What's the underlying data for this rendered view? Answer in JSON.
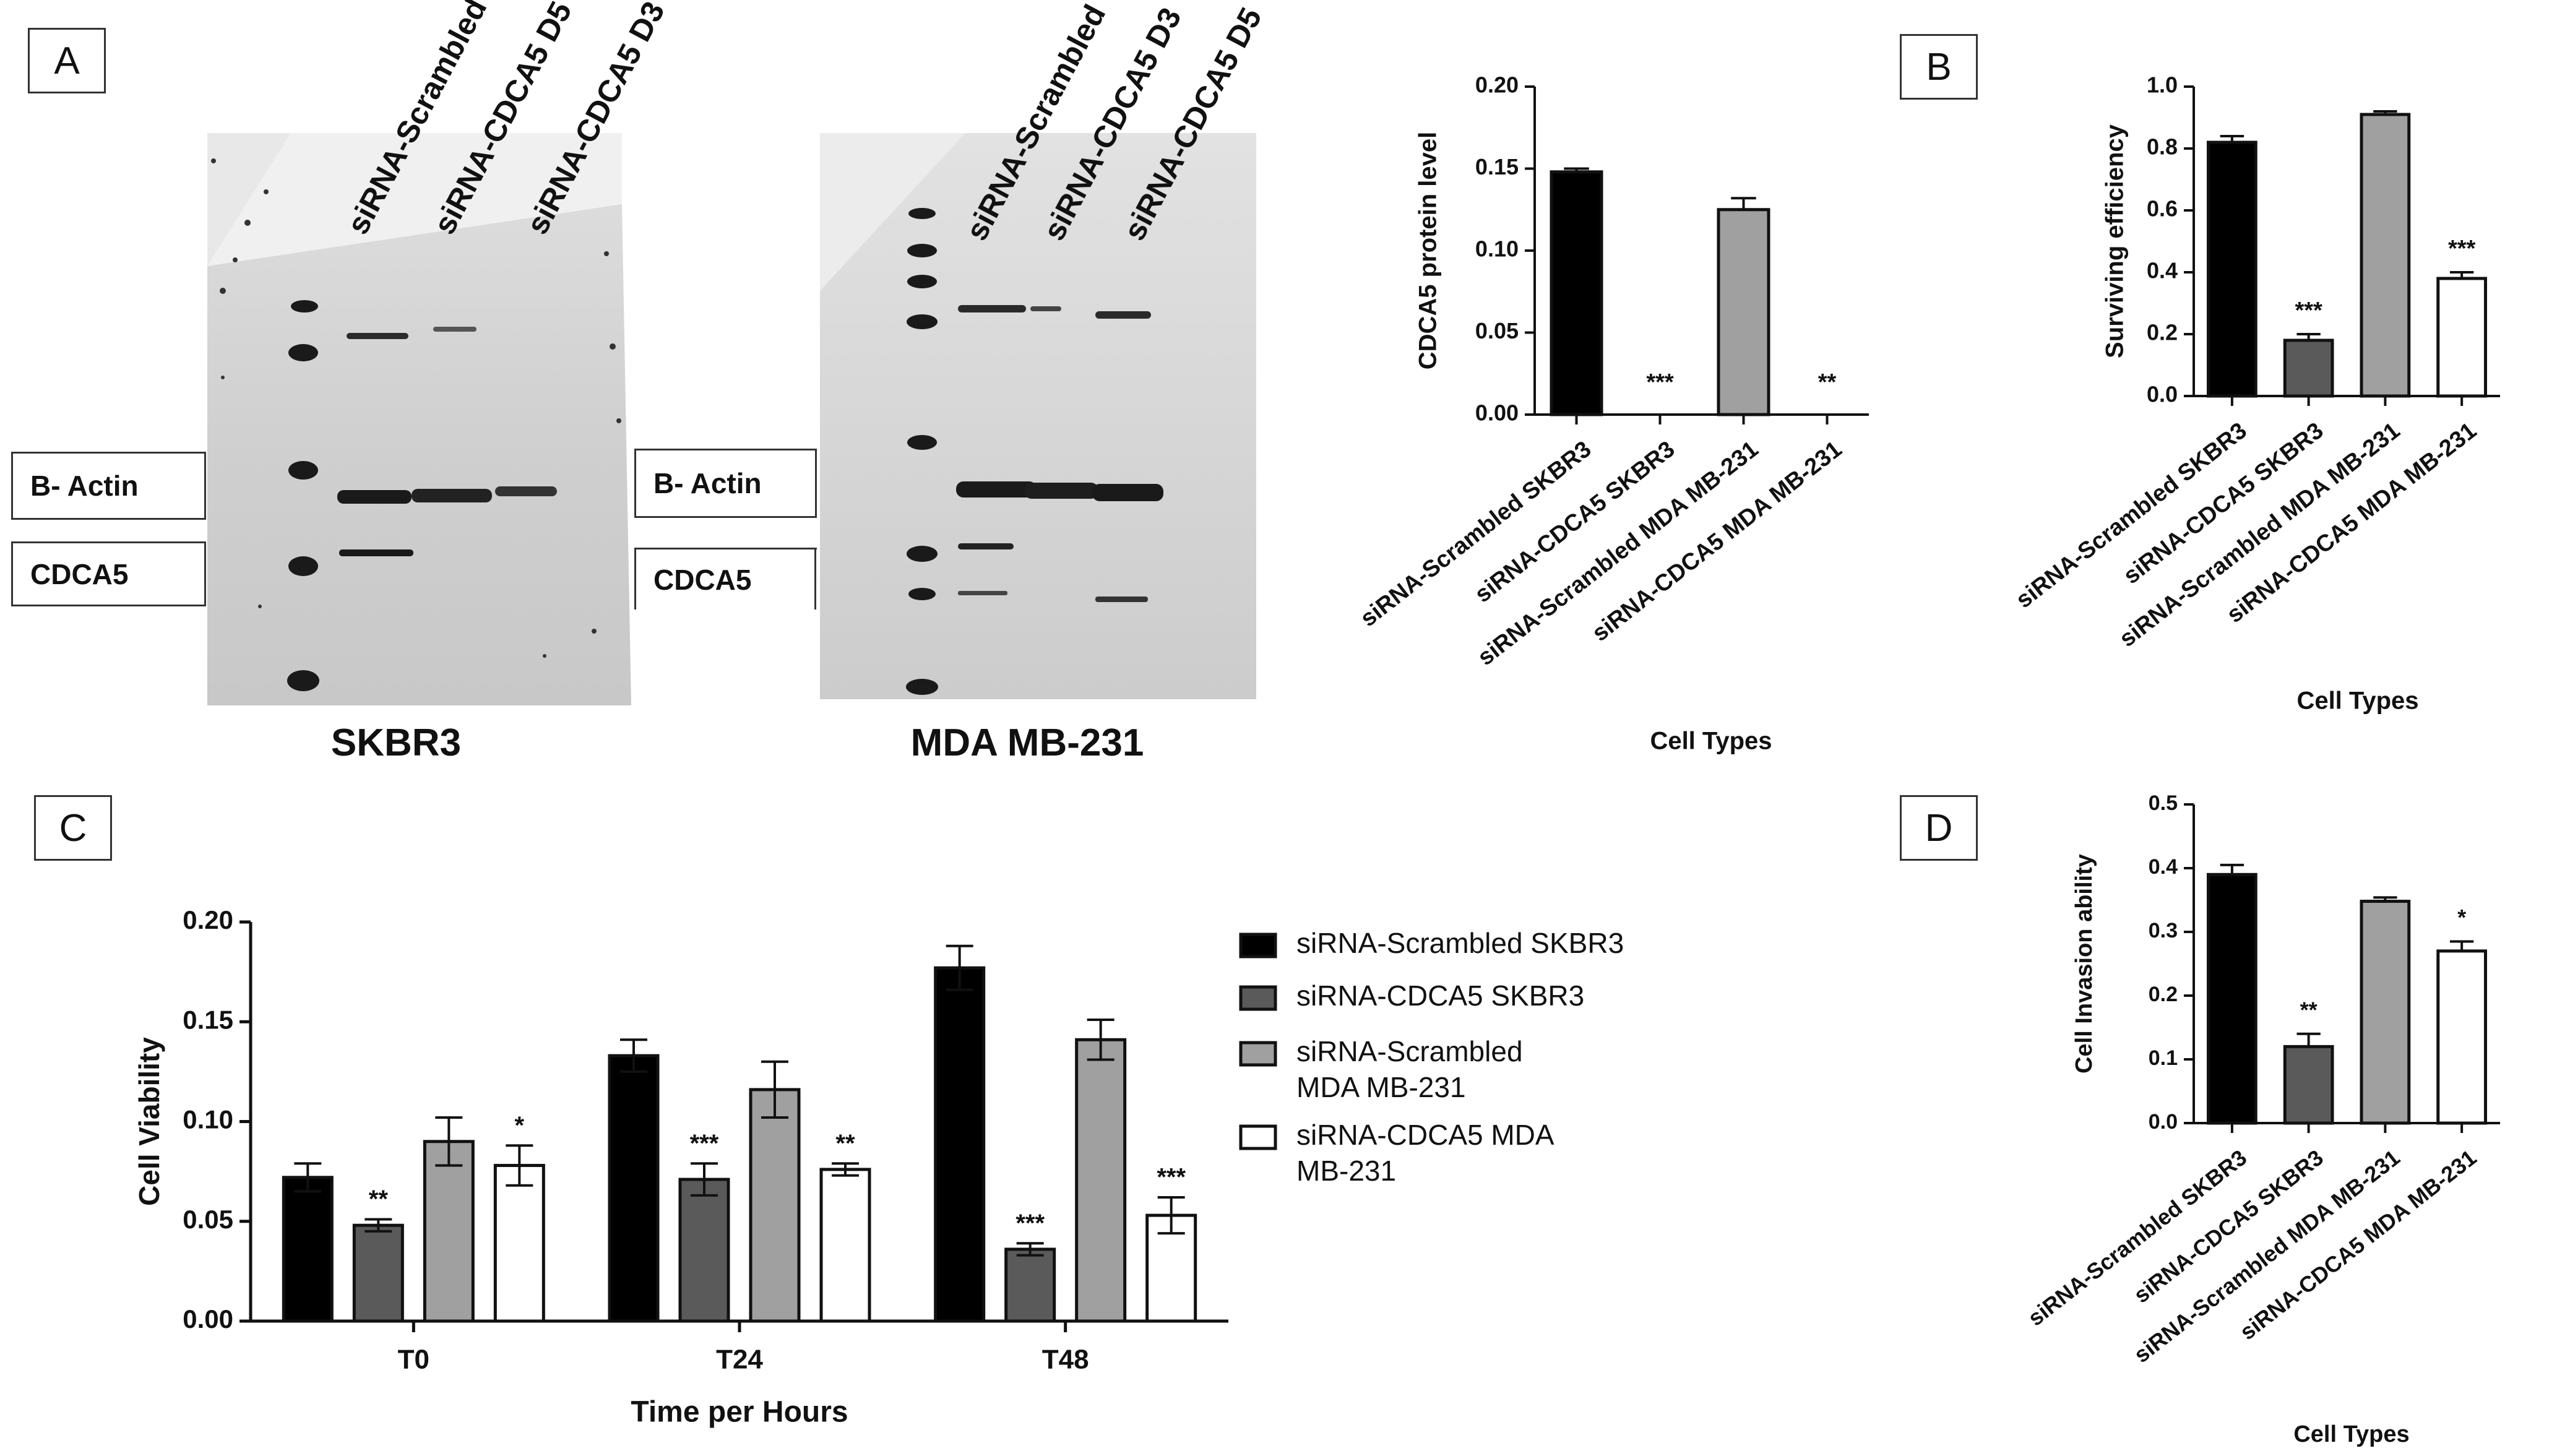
{
  "panels": {
    "a": "A",
    "b": "B",
    "c": "C",
    "d": "D"
  },
  "western_blot": {
    "band_labels": {
      "actin": "B- Actin",
      "cdca5": "CDCA5"
    },
    "blots": [
      {
        "title": "SKBR3",
        "lanes": [
          "siRNA-Scrambled",
          "siRNA-CDCA5 D5",
          "siRNA-CDCA5 D3"
        ]
      },
      {
        "title": "MDA MB-231",
        "lanes": [
          "siRNA-Scrambled",
          "siRNA-CDCA5 D3",
          "siRNA-CDCA5 D5"
        ]
      }
    ]
  },
  "colors": {
    "scrambled_skbr3": "#000000",
    "cdca5_skbr3": "#5a5a5a",
    "scrambled_mda": "#a0a0a0",
    "cdca5_mda": "#ffffff"
  },
  "chart_data": [
    {
      "id": "protein",
      "type": "bar",
      "categories": [
        "siRNA-Scrambled SKBR3",
        "siRNA-CDCA5 SKBR3",
        "siRNA-Scrambled MDA MB-231",
        "siRNA-CDCA5 MDA MB-231"
      ],
      "values": [
        0.148,
        0.0,
        0.125,
        0.0
      ],
      "errors": [
        0.002,
        0.0,
        0.007,
        0.0
      ],
      "significance": [
        "",
        "***",
        "",
        "**"
      ],
      "xlabel": "Cell Types",
      "ylabel": "CDCA5 protein level",
      "ylim": [
        0,
        0.2
      ],
      "yticks": [
        "0.00",
        "0.05",
        "0.10",
        "0.15",
        "0.20"
      ],
      "ytick_values": [
        0,
        0.05,
        0.1,
        0.15,
        0.2
      ]
    },
    {
      "id": "surviving",
      "type": "bar",
      "categories": [
        "siRNA-Scrambled SKBR3",
        "siRNA-CDCA5 SKBR3",
        "siRNA-Scrambled MDA MB-231",
        "siRNA-CDCA5 MDA MB-231"
      ],
      "values": [
        0.82,
        0.18,
        0.91,
        0.38
      ],
      "errors": [
        0.02,
        0.02,
        0.01,
        0.02
      ],
      "significance": [
        "",
        "***",
        "",
        "***"
      ],
      "xlabel": "Cell Types",
      "ylabel": "Surviving efficiency",
      "ylim": [
        0,
        1.0
      ],
      "yticks": [
        "0.0",
        "0.2",
        "0.4",
        "0.6",
        "0.8",
        "1.0"
      ],
      "ytick_values": [
        0,
        0.2,
        0.4,
        0.6,
        0.8,
        1.0
      ]
    },
    {
      "id": "viability",
      "type": "bar",
      "categories": [
        "T0",
        "T24",
        "T48"
      ],
      "series": [
        {
          "name": "siRNA-Scrambled SKBR3",
          "values": [
            0.072,
            0.133,
            0.177
          ],
          "errors": [
            0.007,
            0.008,
            0.011
          ],
          "significance": [
            "",
            "",
            ""
          ]
        },
        {
          "name": "siRNA-CDCA5 SKBR3",
          "values": [
            0.048,
            0.071,
            0.036
          ],
          "errors": [
            0.003,
            0.008,
            0.003
          ],
          "significance": [
            "**",
            "***",
            "***"
          ]
        },
        {
          "name": "siRNA-Scrambled MDA MB-231",
          "values": [
            0.09,
            0.116,
            0.141
          ],
          "errors": [
            0.012,
            0.014,
            0.01
          ],
          "significance": [
            "",
            "",
            ""
          ]
        },
        {
          "name": "siRNA-CDCA5 MDA MB-231",
          "values": [
            0.078,
            0.076,
            0.053
          ],
          "errors": [
            0.01,
            0.003,
            0.009
          ],
          "significance": [
            "*",
            "**",
            "***"
          ]
        }
      ],
      "legend_lines": [
        [
          "siRNA-Scrambled SKBR3"
        ],
        [
          "siRNA-CDCA5 SKBR3"
        ],
        [
          "siRNA-Scrambled",
          "MDA MB-231"
        ],
        [
          "siRNA-CDCA5 MDA",
          "MB-231"
        ]
      ],
      "legend": "right",
      "xlabel": "Time per Hours",
      "ylabel": "Cell Viability",
      "ylim": [
        0,
        0.2
      ],
      "yticks": [
        "0.00",
        "0.05",
        "0.10",
        "0.15",
        "0.20"
      ],
      "ytick_values": [
        0,
        0.05,
        0.1,
        0.15,
        0.2
      ]
    },
    {
      "id": "invasion",
      "type": "bar",
      "categories": [
        "siRNA-Scrambled SKBR3",
        "siRNA-CDCA5 SKBR3",
        "siRNA-Scrambled MDA MB-231",
        "siRNA-CDCA5 MDA MB-231"
      ],
      "values": [
        0.39,
        0.12,
        0.348,
        0.27
      ],
      "errors": [
        0.015,
        0.02,
        0.006,
        0.015
      ],
      "significance": [
        "",
        "**",
        "",
        "*"
      ],
      "xlabel": "Cell Types",
      "ylabel": "Cell Invasion ability",
      "ylim": [
        0,
        0.5
      ],
      "yticks": [
        "0.0",
        "0.1",
        "0.2",
        "0.3",
        "0.4",
        "0.5"
      ],
      "ytick_values": [
        0,
        0.1,
        0.2,
        0.3,
        0.4,
        0.5
      ]
    }
  ]
}
